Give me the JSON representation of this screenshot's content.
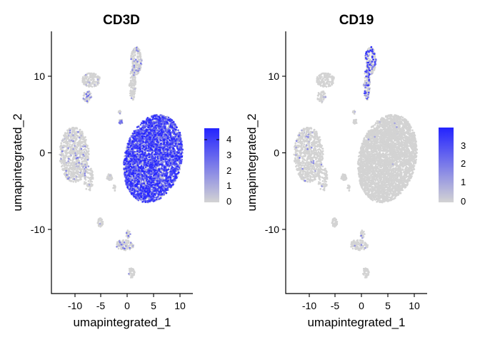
{
  "chart_data": [
    {
      "type": "scatter",
      "title": "CD3D",
      "xlabel": "umapintegrated_1",
      "ylabel": "umapintegrated_2",
      "xlim": [
        -14,
        12
      ],
      "ylim": [
        -18.5,
        15.5
      ],
      "xticks": [
        -10,
        -5,
        0,
        5,
        10
      ],
      "xtick_labels": [
        "-10",
        "-5",
        "0",
        "5",
        "10"
      ],
      "yticks": [
        10,
        0,
        -10
      ],
      "ytick_labels": [
        "10",
        "0",
        "-10"
      ],
      "color_scale": {
        "low": "#d3d3d3",
        "high": "#2323ff",
        "min": 0,
        "max": 4.9
      },
      "legend": {
        "placement": "right",
        "ticks": [
          4,
          3,
          2,
          1,
          0
        ],
        "tick_labels": [
          "4",
          "3",
          "2",
          "1",
          "0"
        ]
      },
      "clusters": [
        {
          "name": "left-large",
          "cx": -9.8,
          "cy": -0.5,
          "rx": 2.7,
          "ry": 3.6,
          "n": 800,
          "expr_frac": 0.08,
          "expr_max": 2.5
        },
        {
          "name": "left-tail",
          "cx": -7.2,
          "cy": -3.6,
          "rx": 0.9,
          "ry": 1.6,
          "n": 80,
          "expr_frac": 0.05,
          "expr_max": 2.0
        },
        {
          "name": "upper-left",
          "cx": -6.7,
          "cy": 9.2,
          "rx": 1.7,
          "ry": 0.9,
          "n": 150,
          "expr_frac": 0.06,
          "expr_max": 2.0
        },
        {
          "name": "upper-left-tail",
          "cx": -7.4,
          "cy": 7.0,
          "rx": 0.8,
          "ry": 0.8,
          "n": 60,
          "expr_frac": 0.35,
          "expr_max": 3.0
        },
        {
          "name": "top-stripe-upper",
          "cx": 1.6,
          "cy": 11.7,
          "rx": 1.0,
          "ry": 1.8,
          "n": 180,
          "expr_frac": 0.15,
          "expr_max": 3.0
        },
        {
          "name": "top-stripe-lower",
          "cx": 0.9,
          "cy": 8.6,
          "rx": 0.6,
          "ry": 2.0,
          "n": 120,
          "expr_frac": 0.08,
          "expr_max": 2.5
        },
        {
          "name": "small-mid",
          "cx": -1.2,
          "cy": 3.8,
          "rx": 0.4,
          "ry": 0.35,
          "n": 25,
          "expr_frac": 0.5,
          "expr_max": 3.5
        },
        {
          "name": "small-mid-up",
          "cx": -1.4,
          "cy": 5.0,
          "rx": 0.25,
          "ry": 0.25,
          "n": 10,
          "expr_frac": 0.1,
          "expr_max": 2.0
        },
        {
          "name": "main-large",
          "cx": 4.7,
          "cy": -1.0,
          "rx": 5.0,
          "ry": 6.1,
          "rot": -38,
          "n": 4200,
          "expr_frac": 0.85,
          "expr_max": 4.9
        },
        {
          "name": "small-left-mid",
          "cx": -3.3,
          "cy": -3.4,
          "rx": 0.6,
          "ry": 0.4,
          "n": 35,
          "expr_frac": 0.08,
          "expr_max": 2.0
        },
        {
          "name": "small-left-low",
          "cx": -2.4,
          "cy": -4.8,
          "rx": 0.3,
          "ry": 0.4,
          "n": 15,
          "expr_frac": 0.1,
          "expr_max": 2.0
        },
        {
          "name": "lower-left",
          "cx": -5.0,
          "cy": -9.3,
          "rx": 0.5,
          "ry": 0.6,
          "n": 40,
          "expr_frac": 0.05,
          "expr_max": 2.0
        },
        {
          "name": "lower-mid",
          "cx": -0.5,
          "cy": -12.2,
          "rx": 1.7,
          "ry": 0.7,
          "n": 120,
          "expr_frac": 0.12,
          "expr_max": 3.0
        },
        {
          "name": "lower-mid-right",
          "cx": 0.1,
          "cy": -10.8,
          "rx": 0.4,
          "ry": 0.5,
          "n": 25,
          "expr_frac": 0.3,
          "expr_max": 3.0
        },
        {
          "name": "bottom",
          "cx": 0.7,
          "cy": -15.8,
          "rx": 0.6,
          "ry": 0.7,
          "n": 45,
          "expr_frac": 0.05,
          "expr_max": 2.0
        }
      ]
    },
    {
      "type": "scatter",
      "title": "CD19",
      "xlabel": "umapintegrated_1",
      "ylabel": "umapintegrated_2",
      "xlim": [
        -14,
        12
      ],
      "ylim": [
        -18.5,
        15.5
      ],
      "xticks": [
        -10,
        -5,
        0,
        5,
        10
      ],
      "xtick_labels": [
        "-10",
        "-5",
        "0",
        "5",
        "10"
      ],
      "yticks": [
        10,
        0,
        -10
      ],
      "ytick_labels": [
        "10",
        "0",
        "-10"
      ],
      "color_scale": {
        "low": "#d3d3d3",
        "high": "#2323ff",
        "min": 0,
        "max": 3.8
      },
      "legend": {
        "placement": "right",
        "ticks": [
          3,
          2,
          1,
          0
        ],
        "tick_labels": [
          "3",
          "2",
          "1",
          "0"
        ]
      },
      "clusters": [
        {
          "name": "left-large",
          "cx": -9.8,
          "cy": -0.5,
          "rx": 2.7,
          "ry": 3.6,
          "n": 800,
          "expr_frac": 0.03,
          "expr_max": 2.0
        },
        {
          "name": "left-tail",
          "cx": -7.2,
          "cy": -3.6,
          "rx": 0.9,
          "ry": 1.6,
          "n": 80,
          "expr_frac": 0.03,
          "expr_max": 1.5
        },
        {
          "name": "upper-left",
          "cx": -6.7,
          "cy": 9.2,
          "rx": 1.7,
          "ry": 0.9,
          "n": 150,
          "expr_frac": 0.0,
          "expr_max": 0
        },
        {
          "name": "upper-left-tail",
          "cx": -7.4,
          "cy": 7.0,
          "rx": 0.8,
          "ry": 0.8,
          "n": 60,
          "expr_frac": 0.02,
          "expr_max": 1.0
        },
        {
          "name": "top-stripe-upper",
          "cx": 1.6,
          "cy": 11.7,
          "rx": 1.0,
          "ry": 1.8,
          "n": 180,
          "expr_frac": 0.3,
          "expr_max": 3.8
        },
        {
          "name": "top-stripe-lower",
          "cx": 0.9,
          "cy": 8.6,
          "rx": 0.6,
          "ry": 2.0,
          "n": 120,
          "expr_frac": 0.25,
          "expr_max": 3.5
        },
        {
          "name": "small-mid",
          "cx": -1.2,
          "cy": 3.8,
          "rx": 0.4,
          "ry": 0.35,
          "n": 25,
          "expr_frac": 0.0,
          "expr_max": 0
        },
        {
          "name": "small-mid-up",
          "cx": -1.4,
          "cy": 5.0,
          "rx": 0.25,
          "ry": 0.25,
          "n": 10,
          "expr_frac": 0.3,
          "expr_max": 2.5
        },
        {
          "name": "main-large",
          "cx": 4.7,
          "cy": -1.0,
          "rx": 5.0,
          "ry": 6.1,
          "rot": -38,
          "n": 4200,
          "expr_frac": 0.002,
          "expr_max": 1.5
        },
        {
          "name": "small-left-mid",
          "cx": -3.3,
          "cy": -3.4,
          "rx": 0.6,
          "ry": 0.4,
          "n": 35,
          "expr_frac": 0.0,
          "expr_max": 0
        },
        {
          "name": "small-left-low",
          "cx": -2.4,
          "cy": -4.8,
          "rx": 0.3,
          "ry": 0.4,
          "n": 15,
          "expr_frac": 0.0,
          "expr_max": 0
        },
        {
          "name": "lower-left",
          "cx": -5.0,
          "cy": -9.3,
          "rx": 0.5,
          "ry": 0.6,
          "n": 40,
          "expr_frac": 0.0,
          "expr_max": 0
        },
        {
          "name": "lower-mid",
          "cx": -0.5,
          "cy": -12.2,
          "rx": 1.7,
          "ry": 0.7,
          "n": 120,
          "expr_frac": 0.03,
          "expr_max": 2.0
        },
        {
          "name": "lower-mid-right",
          "cx": 0.1,
          "cy": -10.8,
          "rx": 0.4,
          "ry": 0.5,
          "n": 25,
          "expr_frac": 0.05,
          "expr_max": 2.0
        },
        {
          "name": "bottom",
          "cx": 0.7,
          "cy": -15.8,
          "rx": 0.6,
          "ry": 0.7,
          "n": 45,
          "expr_frac": 0.0,
          "expr_max": 0
        }
      ]
    }
  ]
}
